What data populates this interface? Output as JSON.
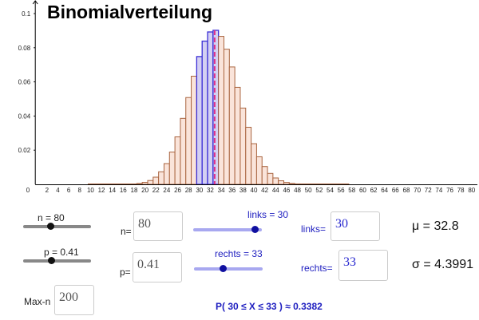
{
  "title": "Binomialverteilung",
  "controls": {
    "n_slider_label": "n = 80",
    "p_slider_label": "p = 0.41",
    "n_field_label": "n=",
    "n_value": "80",
    "p_field_label": "p=",
    "p_value": "0.41",
    "maxn_label": "Max-n",
    "maxn_value": "200",
    "links_slider_label": "links = 30",
    "rechts_slider_label": "rechts = 33",
    "links_field_label": "links=",
    "links_value": "30",
    "rechts_field_label": "rechts=",
    "rechts_value": "33",
    "n_fraction": 0.4,
    "p_fraction": 0.41,
    "links_fraction": 0.9,
    "rechts_fraction": 0.42
  },
  "stats": {
    "mu": "μ = 32.8",
    "sigma": "σ = 4.3991",
    "probability": "P(  30 ≤ X ≤ 33 ) ≈ 0.3382"
  },
  "colors": {
    "bar_fill": "#fae4da",
    "bar_stroke": "#a9643f",
    "sel_fill": "#d4d0f2",
    "sel_stroke": "#3b2fd6",
    "mean_line": "#e0308a"
  },
  "chart_data": {
    "type": "bar",
    "title": "Binomialverteilung",
    "n": 80,
    "p": 0.41,
    "mean": 32.8,
    "highlight_range": [
      30,
      33
    ],
    "xlim": [
      0,
      80
    ],
    "ylim": [
      0,
      0.1
    ],
    "xticks": [
      0,
      2,
      4,
      6,
      8,
      10,
      12,
      14,
      16,
      18,
      20,
      22,
      24,
      26,
      28,
      30,
      32,
      34,
      36,
      38,
      40,
      42,
      44,
      46,
      48,
      50,
      52,
      54,
      56,
      58,
      60,
      62,
      64,
      66,
      68,
      70,
      72,
      74,
      76,
      78,
      80
    ],
    "yticks": [
      "0.02",
      "0.04",
      "0.06",
      "0.08",
      "0.1"
    ],
    "ytick_values": [
      0.02,
      0.04,
      0.06,
      0.08,
      0.1
    ],
    "x": [
      16,
      17,
      18,
      19,
      20,
      21,
      22,
      23,
      24,
      25,
      26,
      27,
      28,
      29,
      30,
      31,
      32,
      33,
      34,
      35,
      36,
      37,
      38,
      39,
      40,
      41,
      42,
      43,
      44,
      45,
      46,
      47,
      48,
      49,
      50
    ],
    "values": [
      4e-05,
      0.0001,
      0.00023,
      0.00053,
      0.00113,
      0.00225,
      0.0042,
      0.00736,
      0.01215,
      0.01891,
      0.0278,
      0.03864,
      0.05083,
      0.06333,
      0.07482,
      0.08386,
      0.08924,
      0.0902,
      0.08665,
      0.07914,
      0.06874,
      0.05681,
      0.04467,
      0.03343,
      0.02381,
      0.01614,
      0.01042,
      0.0064,
      0.00374,
      0.00208,
      0.0011,
      0.00055,
      0.00026,
      0.00012,
      5e-05
    ]
  }
}
